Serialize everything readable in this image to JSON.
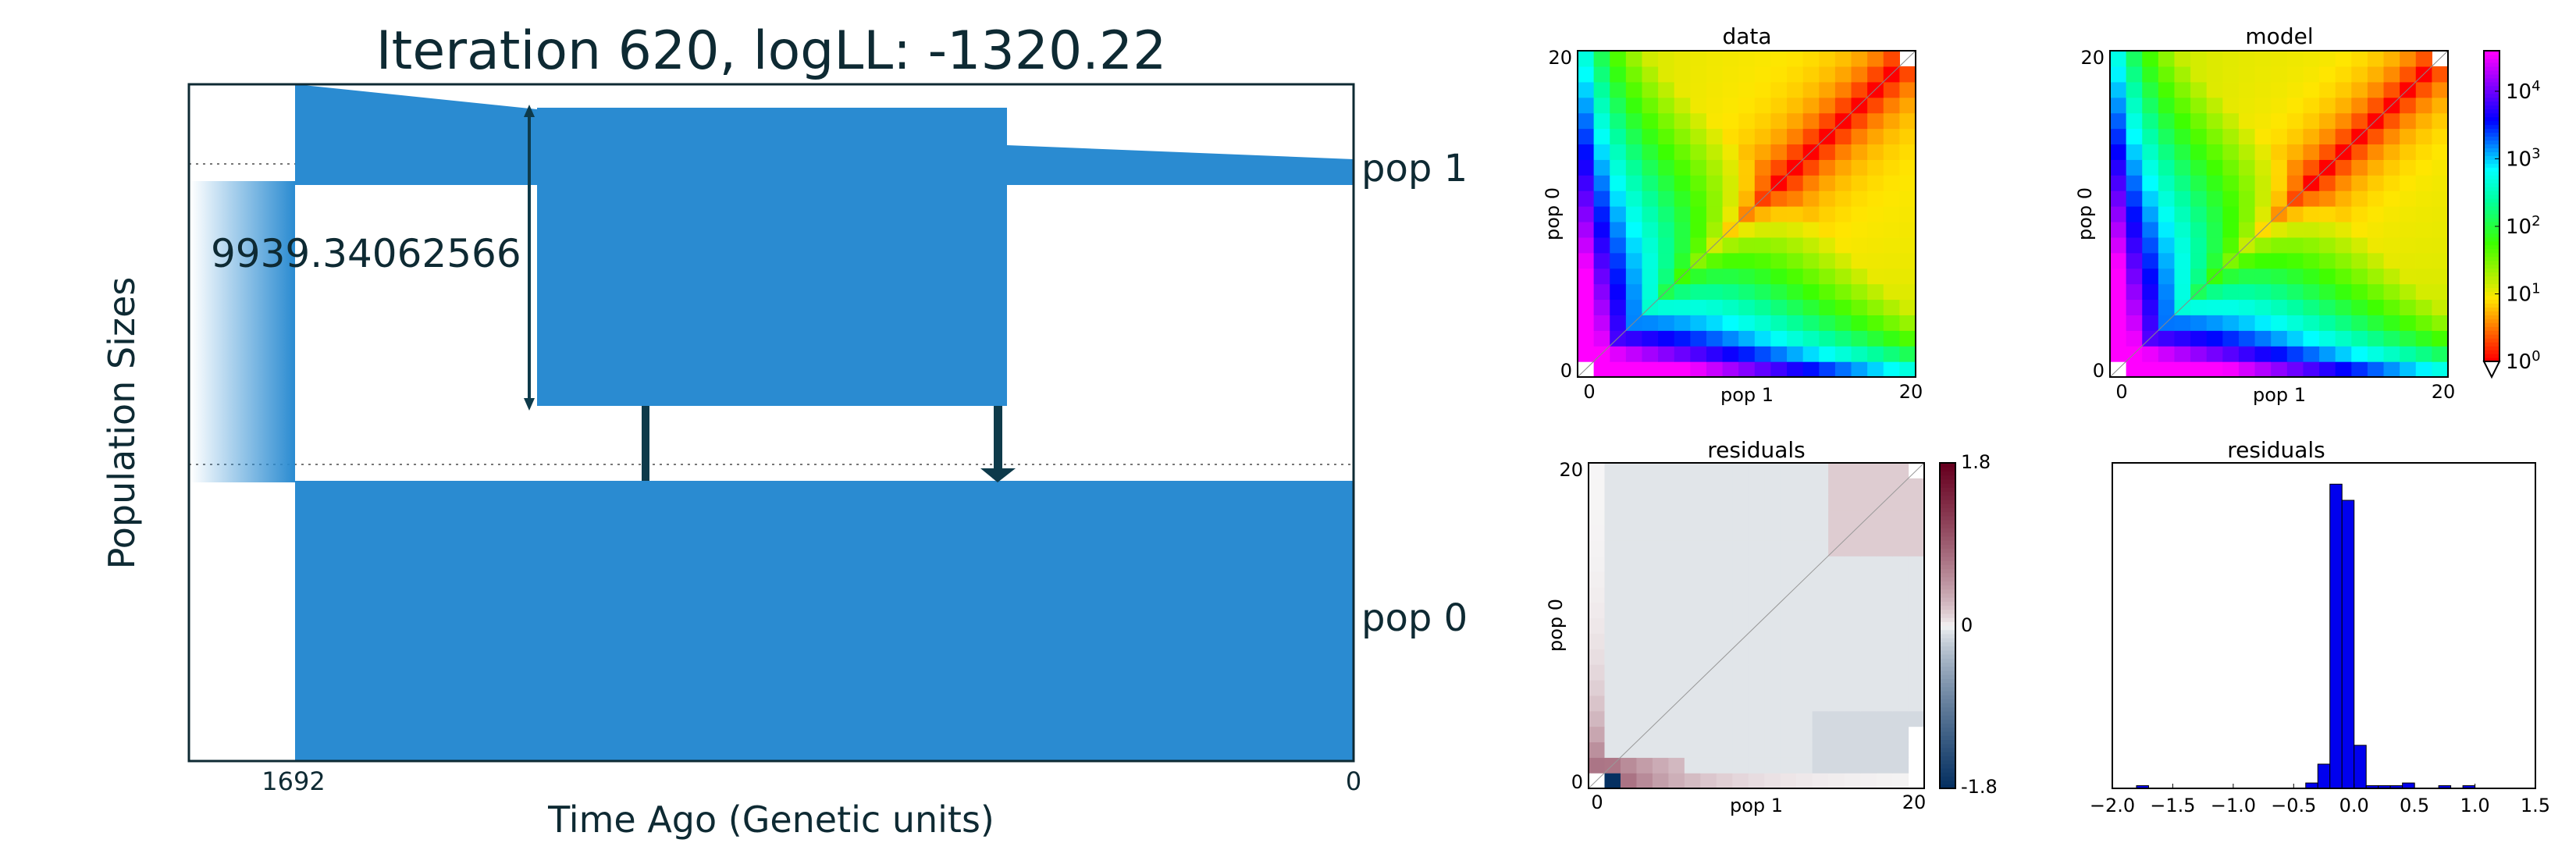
{
  "demography": {
    "title": "Iteration 620, logLL:   -1320.22",
    "ylabel": "Population Sizes",
    "xlabel": "Time Ago (Genetic units)",
    "tick_labels": [
      "1692",
      "0"
    ],
    "pop_labels": [
      "pop 1",
      "pop 0"
    ],
    "size_label": "9939.34062566",
    "fill_color": "#2a8bd1",
    "arrow_color": "#0e3a4a"
  },
  "chart_data": [
    {
      "type": "heatmap",
      "title": "data",
      "xlabel": "pop 1",
      "ylabel": "pop 0",
      "xticks": [
        "0",
        "20"
      ],
      "yticks": [
        "0",
        "20"
      ],
      "size": 21,
      "scale": "log",
      "colorbar": {
        "ticks": [
          "10^0",
          "10^1",
          "10^2",
          "10^3",
          "10^4"
        ]
      }
    },
    {
      "type": "heatmap",
      "title": "model",
      "xlabel": "pop 1",
      "ylabel": "pop 0",
      "xticks": [
        "0",
        "20"
      ],
      "yticks": [
        "0",
        "20"
      ],
      "size": 21,
      "scale": "log"
    },
    {
      "type": "heatmap",
      "title": "residuals",
      "xlabel": "pop 1",
      "ylabel": "pop 0",
      "xticks": [
        "0",
        "20"
      ],
      "yticks": [
        "0",
        "20"
      ],
      "size": 21,
      "colorbar": {
        "ticks": [
          "1.8",
          "0",
          "-1.8"
        ],
        "range": [
          -1.8,
          1.8
        ]
      }
    },
    {
      "type": "bar",
      "title": "residuals",
      "xlim": [
        -2.0,
        1.5
      ],
      "xticks": [
        "−2.0",
        "−1.5",
        "−1.0",
        "−0.5",
        "0.0",
        "0.5",
        "1.0",
        "1.5"
      ],
      "bin_width": 0.1,
      "bins": [
        -1.75,
        -0.45,
        -0.35,
        -0.25,
        -0.15,
        -0.05,
        0.05,
        0.15,
        0.25,
        0.35,
        0.45,
        0.55,
        0.65,
        0.75,
        0.85,
        0.95,
        1.05,
        1.15,
        1.25
      ],
      "counts": [
        1,
        0,
        2,
        9,
        113,
        107,
        16,
        1,
        1,
        1,
        2,
        0,
        0,
        1,
        0,
        1,
        0,
        0,
        0
      ],
      "bar_color": "#0000ee"
    }
  ]
}
